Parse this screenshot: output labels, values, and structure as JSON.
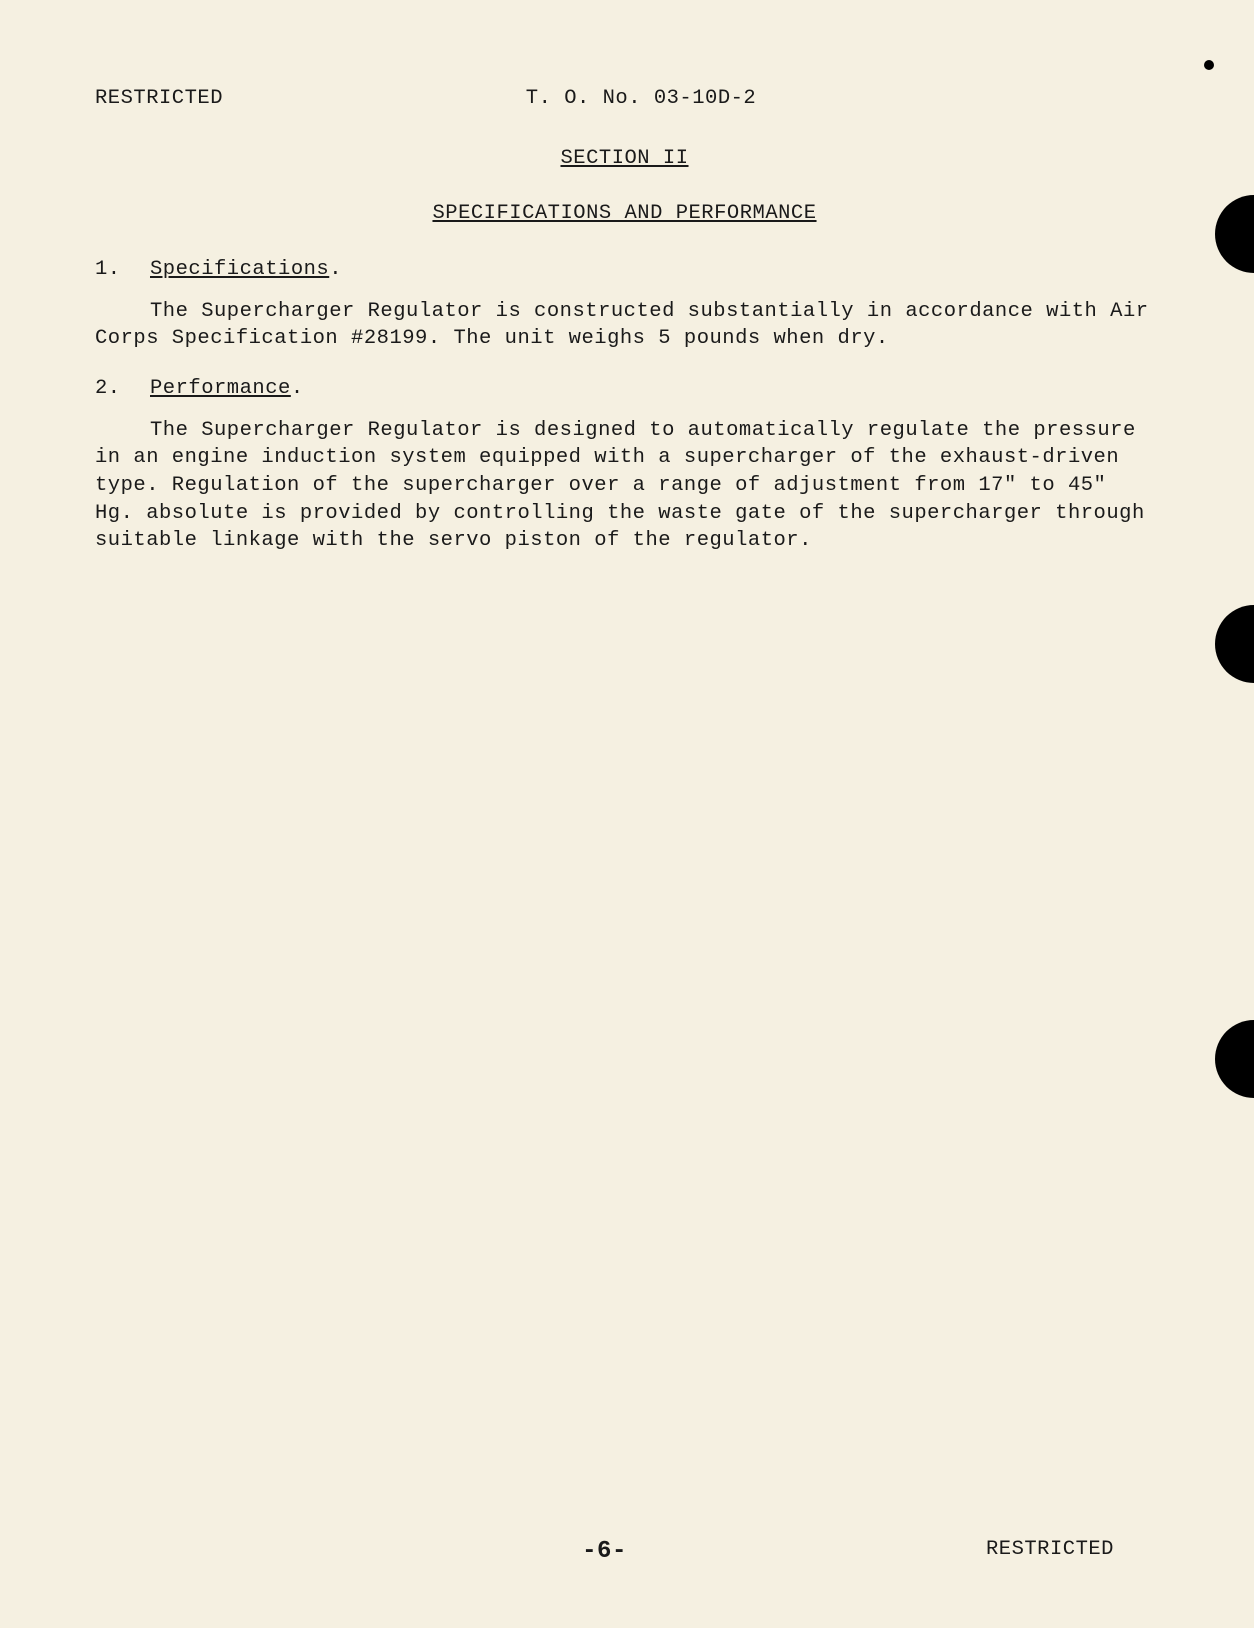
{
  "header": {
    "classification": "RESTRICTED",
    "documentNumber": "T. O. No. 03-10D-2"
  },
  "section": {
    "heading": "SECTION II",
    "title": "SPECIFICATIONS AND PERFORMANCE"
  },
  "items": [
    {
      "number": "1.",
      "heading": "Specifications",
      "punctuation": ".",
      "paragraph": "The Supercharger Regulator is constructed substantially in accordance with Air Corps Specification #28199.  The unit weighs 5 pounds when dry."
    },
    {
      "number": "2.",
      "heading": "Performance",
      "punctuation": ".",
      "paragraph": "The Supercharger Regulator is designed to automatically regulate the pressure in an engine induction system equipped with a supercharger of the exhaust-driven type.  Regulation of the supercharger over a range of adjustment from 17\" to 45\" Hg. absolute is provided by controlling the waste gate of the supercharger through suitable linkage with the servo piston of the regulator."
    }
  ],
  "footer": {
    "pageNumber": "-6-",
    "classification": "RESTRICTED"
  },
  "styling": {
    "backgroundColor": "#f5f0e1",
    "textColor": "#1a1a1a",
    "fontFamily": "Courier New",
    "fontSize": 20.5,
    "punchHoleColor": "#000000",
    "punchHoleDiameter": 78,
    "punchHolePositions": [
      195,
      605,
      1020
    ]
  }
}
